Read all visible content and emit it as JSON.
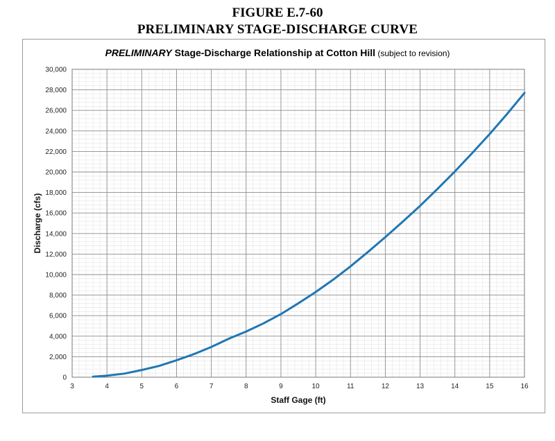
{
  "figure": {
    "number": "FIGURE E.7-60",
    "caption": "PRELIMINARY STAGE-DISCHARGE CURVE"
  },
  "chart_data": {
    "type": "line",
    "title_emphasis": "PRELIMINARY",
    "title_main": " Stage-Discharge Relationship at Cotton Hill",
    "title_note": " (subject to revision)",
    "xlabel": "Staff Gage (ft)",
    "ylabel": "Discharge (cfs)",
    "xlim": [
      3,
      16
    ],
    "ylim": [
      0,
      30000
    ],
    "x_ticks": [
      "3",
      "4",
      "5",
      "6",
      "7",
      "8",
      "9",
      "10",
      "11",
      "12",
      "13",
      "14",
      "15",
      "16"
    ],
    "y_ticks": [
      "0",
      "2,000",
      "4,000",
      "6,000",
      "8,000",
      "10,000",
      "12,000",
      "14,000",
      "16,000",
      "18,000",
      "20,000",
      "22,000",
      "24,000",
      "26,000",
      "28,000",
      "30,000"
    ],
    "grid": true,
    "line_color": "#1f77b4",
    "series": [
      {
        "x": [
          3.6,
          4.0,
          4.5,
          5.0,
          5.5,
          6.0,
          6.5,
          7.0,
          7.5,
          8.0,
          8.5,
          9.0,
          9.5,
          10.0,
          10.5,
          11.0,
          11.5,
          12.0,
          12.5,
          13.0,
          13.5,
          14.0,
          14.5,
          15.0,
          15.5,
          16.0
        ],
        "y": [
          50,
          150,
          350,
          700,
          1100,
          1650,
          2250,
          2950,
          3750,
          4450,
          5250,
          6150,
          7200,
          8300,
          9500,
          10800,
          12200,
          13650,
          15150,
          16700,
          18350,
          20050,
          21850,
          23700,
          25650,
          27700
        ]
      }
    ]
  }
}
